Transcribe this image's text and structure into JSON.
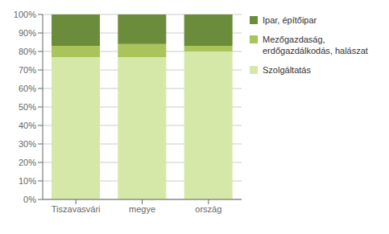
{
  "chart_data": {
    "type": "bar",
    "stacked": true,
    "categories": [
      "Tiszavasvári",
      "megye",
      "ország"
    ],
    "series": [
      {
        "name": "Szolgáltatás",
        "color": "#d6e8a8",
        "values": [
          77,
          77,
          80
        ]
      },
      {
        "name": "Mezőgazdaság,\nerdőgazdálkodás, halászat",
        "color": "#a8c45a",
        "values": [
          6,
          7,
          3
        ]
      },
      {
        "name": "Ipar, építőipar",
        "color": "#6b8c3a",
        "values": [
          17,
          16,
          17
        ]
      }
    ],
    "ylim": [
      0,
      100
    ],
    "yticks": [
      {
        "value": 0,
        "label": "0%"
      },
      {
        "value": 10,
        "label": "10%"
      },
      {
        "value": 20,
        "label": "20%"
      },
      {
        "value": 30,
        "label": "30%"
      },
      {
        "value": 40,
        "label": "40%"
      },
      {
        "value": 50,
        "label": "50%"
      },
      {
        "value": 60,
        "label": "60%"
      },
      {
        "value": 70,
        "label": "70%"
      },
      {
        "value": 80,
        "label": "80%"
      },
      {
        "value": 90,
        "label": "90%"
      },
      {
        "value": 100,
        "label": "100%"
      }
    ],
    "grid": true,
    "legend": "right"
  }
}
